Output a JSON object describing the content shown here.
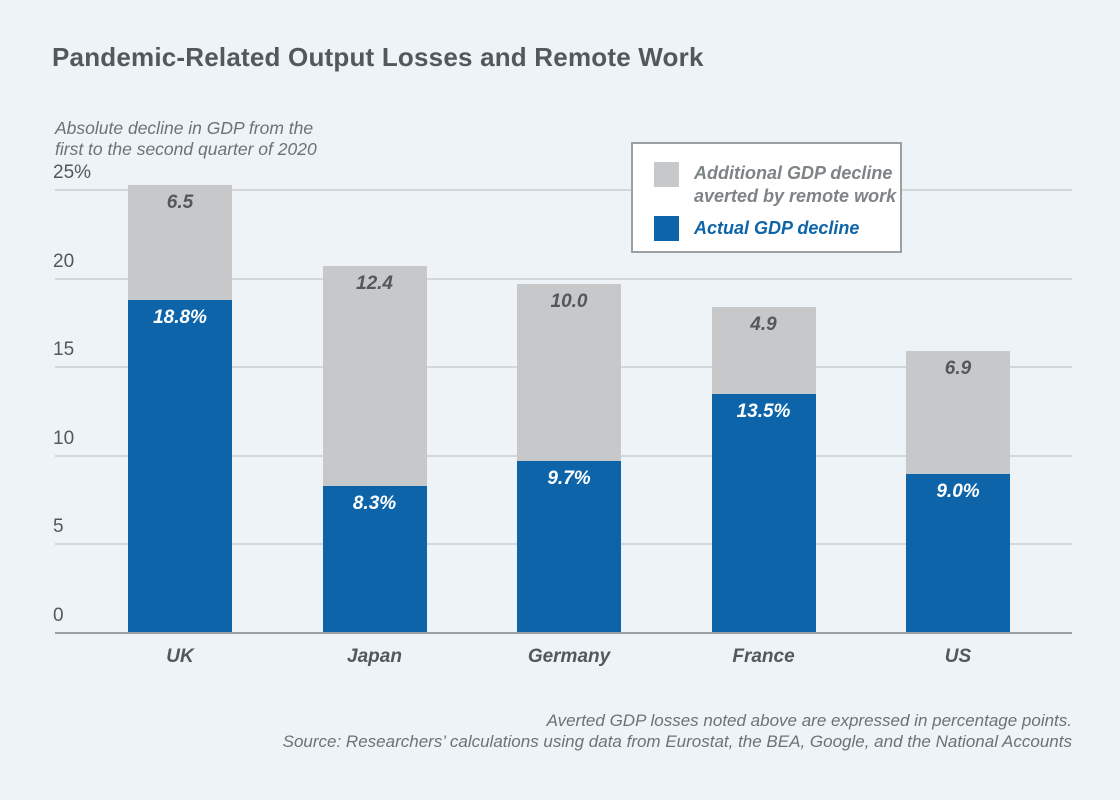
{
  "header": {
    "title": "Pandemic-Related Output Losses and Remote Work"
  },
  "subtitle": {
    "line1": "Absolute decline in GDP from the",
    "line2": "first to the second quarter of 2020"
  },
  "legend": {
    "averted_line1": "Additional GDP decline",
    "averted_line2": "averted by remote work",
    "actual_label": "Actual GDP decline"
  },
  "footnotes": {
    "line1": "Averted GDP losses noted above are expressed in percentage points.",
    "line2": "Source: Researchers’ calculations using data from Eurostat, the BEA, Google, and the National Accounts"
  },
  "colors": {
    "actual_blue": "#0d64a8",
    "averted_gray": "#c7c8ca",
    "background": "#eef3f8",
    "text_dark": "#54585b",
    "text_muted": "#6d7275"
  },
  "chart_data": {
    "type": "bar",
    "stacked": true,
    "title": "Pandemic-Related Output Losses and Remote Work",
    "subtitle": "Absolute decline in GDP from the first to the second quarter of 2020",
    "categories": [
      "UK",
      "Japan",
      "Germany",
      "France",
      "US"
    ],
    "series": [
      {
        "name": "Actual GDP decline",
        "values": [
          18.8,
          8.3,
          9.7,
          13.5,
          9.0
        ],
        "labels": [
          "18.8%",
          "8.3%",
          "9.7%",
          "13.5%",
          "9.0%"
        ],
        "color": "#0d64a8"
      },
      {
        "name": "Additional GDP decline averted by remote work",
        "values": [
          6.5,
          12.4,
          10.0,
          4.9,
          6.9
        ],
        "labels": [
          "6.5",
          "12.4",
          "10.0",
          "4.9",
          "6.9"
        ],
        "color": "#c7c8ca"
      }
    ],
    "ylim": [
      0,
      25
    ],
    "yticks": [
      0,
      5,
      10,
      15,
      20,
      25
    ],
    "ytick_labels": [
      "0",
      "5",
      "10",
      "15",
      "20",
      "25%"
    ],
    "grid": true,
    "legend_position": "top-right",
    "note": "Averted GDP losses are expressed in percentage points."
  }
}
